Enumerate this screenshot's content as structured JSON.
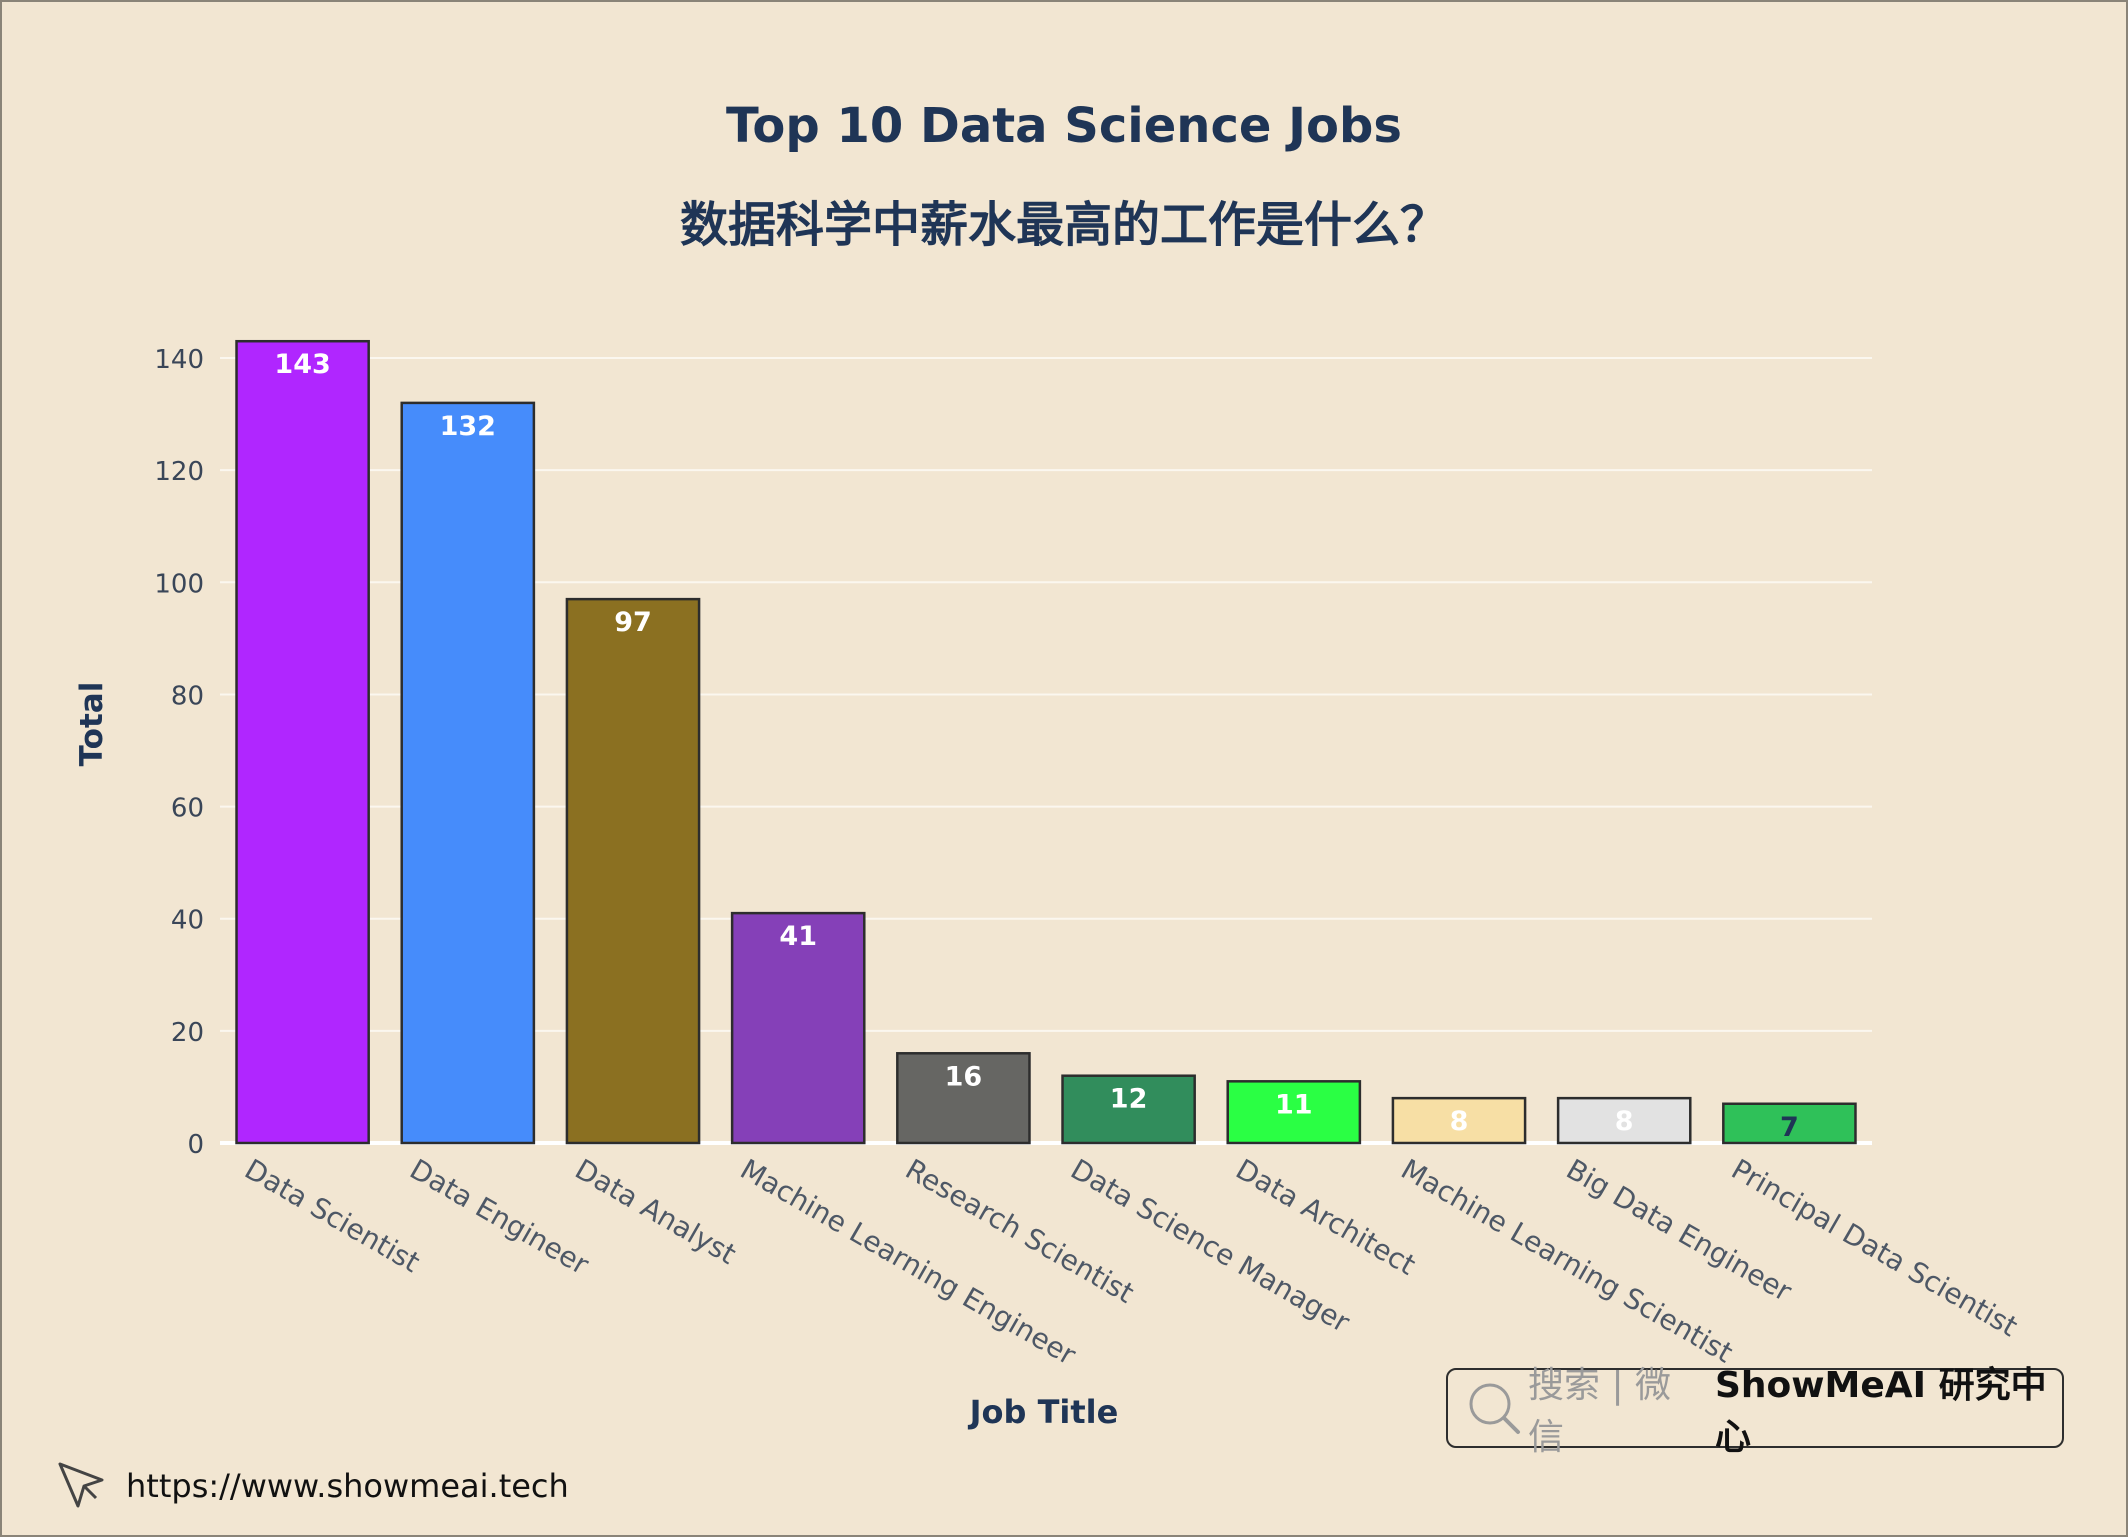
{
  "chart_data": {
    "type": "bar",
    "title": "Top 10 Data Science Jobs",
    "subtitle": "数据科学中薪水最高的工作是什么？",
    "xlabel": "Job Title",
    "ylabel": "Total",
    "ylim": [
      0,
      145
    ],
    "yticks": [
      0,
      20,
      40,
      60,
      80,
      100,
      120,
      140
    ],
    "grid": true,
    "categories": [
      "Data Scientist",
      "Data Engineer",
      "Data Analyst",
      "Machine Learning Engineer",
      "Research Scientist",
      "Data Science Manager",
      "Data Architect",
      "Machine Learning Scientist",
      "Big Data Engineer",
      "Principal Data Scientist"
    ],
    "values": [
      143,
      132,
      97,
      41,
      16,
      12,
      11,
      8,
      8,
      7
    ],
    "colors": [
      "#b026ff",
      "#468cfb",
      "#8b7021",
      "#8540b8",
      "#666663",
      "#318d5c",
      "#2aff44",
      "#f7dfa5",
      "#e2e2e2",
      "#2fc159"
    ],
    "label_colors": [
      "#ffffff",
      "#ffffff",
      "#ffffff",
      "#ffffff",
      "#ffffff",
      "#ffffff",
      "#ffffff",
      "#ffffff",
      "#ffffff",
      "#1f3556"
    ]
  },
  "badge": {
    "search_text": "搜索 | 微信",
    "brand_text": "ShowMeAI 研究中心"
  },
  "footer": {
    "url": "https://www.showmeai.tech"
  }
}
